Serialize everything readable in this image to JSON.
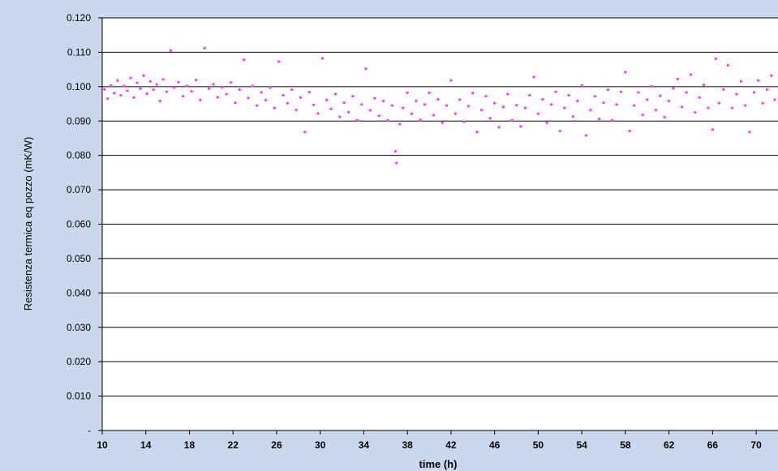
{
  "chart_data": {
    "type": "scatter",
    "title": "",
    "xlabel": "time (h)",
    "ylabel": "Resistenza termica eq pozzo (mK/W)",
    "xlim": [
      10,
      72
    ],
    "ylim": [
      0,
      0.12
    ],
    "x_ticks": [
      "10",
      "14",
      "18",
      "22",
      "26",
      "30",
      "34",
      "38",
      "42",
      "46",
      "50",
      "54",
      "58",
      "62",
      "66",
      "70"
    ],
    "y_ticks": [
      "-",
      "0.010",
      "0.020",
      "0.030",
      "0.040",
      "0.050",
      "0.060",
      "0.070",
      "0.080",
      "0.090",
      "0.100",
      "0.110",
      "0.120"
    ],
    "grid": "horizontal",
    "legend": "none",
    "series": [
      {
        "marker_color": "#ff33ff",
        "points": [
          [
            10.2,
            0.0992
          ],
          [
            10.5,
            0.0965
          ],
          [
            10.8,
            0.1003
          ],
          [
            11.1,
            0.0981
          ],
          [
            11.4,
            0.1018
          ],
          [
            11.7,
            0.0975
          ],
          [
            12.0,
            0.1002
          ],
          [
            12.3,
            0.0988
          ],
          [
            12.6,
            0.1025
          ],
          [
            12.9,
            0.0968
          ],
          [
            13.2,
            0.1011
          ],
          [
            13.5,
            0.0994
          ],
          [
            13.8,
            0.1032
          ],
          [
            14.1,
            0.0979
          ],
          [
            14.4,
            0.1015
          ],
          [
            14.7,
            0.0991
          ],
          [
            15.0,
            0.1006
          ],
          [
            15.3,
            0.0958
          ],
          [
            15.6,
            0.1021
          ],
          [
            15.9,
            0.0985
          ],
          [
            16.3,
            0.1105
          ],
          [
            16.6,
            0.0997
          ],
          [
            17.0,
            0.1013
          ],
          [
            17.4,
            0.0972
          ],
          [
            17.8,
            0.1002
          ],
          [
            18.2,
            0.0986
          ],
          [
            18.6,
            0.1019
          ],
          [
            19.0,
            0.0961
          ],
          [
            19.4,
            0.1112
          ],
          [
            19.8,
            0.0994
          ],
          [
            20.2,
            0.1007
          ],
          [
            20.6,
            0.0969
          ],
          [
            21.0,
            0.0998
          ],
          [
            21.4,
            0.0978
          ],
          [
            21.8,
            0.1012
          ],
          [
            22.2,
            0.0953
          ],
          [
            22.6,
            0.0991
          ],
          [
            23.0,
            0.1078
          ],
          [
            23.4,
            0.0967
          ],
          [
            23.8,
            0.1002
          ],
          [
            24.2,
            0.0945
          ],
          [
            24.6,
            0.0983
          ],
          [
            25.0,
            0.0961
          ],
          [
            25.4,
            0.0997
          ],
          [
            25.8,
            0.0938
          ],
          [
            26.2,
            0.1073
          ],
          [
            26.6,
            0.0975
          ],
          [
            27.0,
            0.0952
          ],
          [
            27.4,
            0.0991
          ],
          [
            27.8,
            0.0932
          ],
          [
            28.2,
            0.0968
          ],
          [
            28.6,
            0.0868
          ],
          [
            29.0,
            0.0984
          ],
          [
            29.4,
            0.0947
          ],
          [
            29.8,
            0.0922
          ],
          [
            30.2,
            0.1082
          ],
          [
            30.6,
            0.0961
          ],
          [
            31.0,
            0.0935
          ],
          [
            31.4,
            0.0978
          ],
          [
            31.8,
            0.0912
          ],
          [
            32.2,
            0.0953
          ],
          [
            32.6,
            0.0926
          ],
          [
            33.0,
            0.0972
          ],
          [
            33.4,
            0.0902
          ],
          [
            33.8,
            0.0948
          ],
          [
            34.2,
            0.1052
          ],
          [
            34.6,
            0.0931
          ],
          [
            35.0,
            0.0966
          ],
          [
            35.4,
            0.0915
          ],
          [
            35.8,
            0.0958
          ],
          [
            36.2,
            0.0902
          ],
          [
            36.6,
            0.0945
          ],
          [
            36.9,
            0.0812
          ],
          [
            37.0,
            0.0778
          ],
          [
            37.3,
            0.0891
          ],
          [
            37.6,
            0.0938
          ],
          [
            38.0,
            0.0982
          ],
          [
            38.4,
            0.0921
          ],
          [
            38.8,
            0.0958
          ],
          [
            39.2,
            0.0903
          ],
          [
            39.6,
            0.0948
          ],
          [
            40.0,
            0.0982
          ],
          [
            40.4,
            0.0917
          ],
          [
            40.8,
            0.0963
          ],
          [
            41.2,
            0.0895
          ],
          [
            41.6,
            0.0945
          ],
          [
            42.0,
            0.1018
          ],
          [
            42.4,
            0.0921
          ],
          [
            42.8,
            0.0962
          ],
          [
            43.2,
            0.0898
          ],
          [
            43.6,
            0.0943
          ],
          [
            44.0,
            0.0981
          ],
          [
            44.4,
            0.0868
          ],
          [
            44.8,
            0.0932
          ],
          [
            45.2,
            0.0972
          ],
          [
            45.6,
            0.0908
          ],
          [
            46.0,
            0.0952
          ],
          [
            46.4,
            0.0882
          ],
          [
            46.8,
            0.0941
          ],
          [
            47.2,
            0.0978
          ],
          [
            47.6,
            0.0902
          ],
          [
            48.0,
            0.0946
          ],
          [
            48.4,
            0.0884
          ],
          [
            48.8,
            0.0938
          ],
          [
            49.2,
            0.0975
          ],
          [
            49.6,
            0.1028
          ],
          [
            50.0,
            0.0921
          ],
          [
            50.4,
            0.0963
          ],
          [
            50.8,
            0.0895
          ],
          [
            51.2,
            0.0948
          ],
          [
            51.6,
            0.0985
          ],
          [
            52.0,
            0.0871
          ],
          [
            52.4,
            0.0938
          ],
          [
            52.8,
            0.0975
          ],
          [
            53.2,
            0.0913
          ],
          [
            53.6,
            0.0958
          ],
          [
            54.0,
            0.1003
          ],
          [
            54.4,
            0.0858
          ],
          [
            54.8,
            0.0932
          ],
          [
            55.2,
            0.0972
          ],
          [
            55.6,
            0.0906
          ],
          [
            56.0,
            0.0953
          ],
          [
            56.4,
            0.0991
          ],
          [
            56.8,
            0.0902
          ],
          [
            57.2,
            0.0948
          ],
          [
            57.6,
            0.0985
          ],
          [
            58.0,
            0.1042
          ],
          [
            58.4,
            0.0871
          ],
          [
            58.8,
            0.0945
          ],
          [
            59.2,
            0.0983
          ],
          [
            59.6,
            0.0918
          ],
          [
            60.0,
            0.0962
          ],
          [
            60.4,
            0.1001
          ],
          [
            60.8,
            0.0932
          ],
          [
            61.2,
            0.0973
          ],
          [
            61.6,
            0.0911
          ],
          [
            62.0,
            0.0958
          ],
          [
            62.4,
            0.0995
          ],
          [
            62.8,
            0.1022
          ],
          [
            63.2,
            0.0941
          ],
          [
            63.6,
            0.0983
          ],
          [
            64.0,
            0.1035
          ],
          [
            64.4,
            0.0925
          ],
          [
            64.8,
            0.0968
          ],
          [
            65.2,
            0.1005
          ],
          [
            65.6,
            0.0938
          ],
          [
            66.0,
            0.0875
          ],
          [
            66.3,
            0.1081
          ],
          [
            66.6,
            0.0952
          ],
          [
            67.0,
            0.0992
          ],
          [
            67.4,
            0.1062
          ],
          [
            67.8,
            0.0938
          ],
          [
            68.2,
            0.0978
          ],
          [
            68.6,
            0.1015
          ],
          [
            69.0,
            0.0945
          ],
          [
            69.4,
            0.0868
          ],
          [
            69.8,
            0.0983
          ],
          [
            70.2,
            0.1018
          ],
          [
            70.6,
            0.0952
          ],
          [
            71.0,
            0.0991
          ],
          [
            71.4,
            0.1032
          ],
          [
            71.7,
            0.0962
          ]
        ]
      }
    ]
  }
}
